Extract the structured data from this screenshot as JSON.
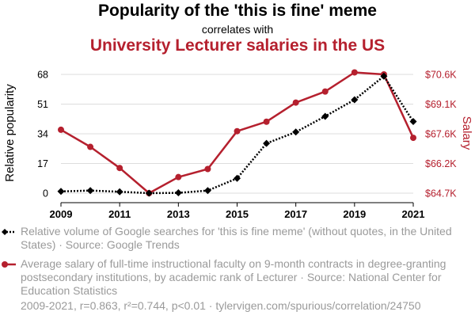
{
  "header": {
    "title": "Popularity of the 'this is fine' meme",
    "correlates": "correlates with",
    "title2": "University Lecturer salaries in the US"
  },
  "legend": {
    "series1": "Relative volume of Google searches for 'this is fine meme' (without quotes, in the United States) · Source: Google Trends",
    "series2": "Average salary of full-time instructional faculty on 9-month contracts in degree-granting postsecondary institutions, by academic rank of Lecturer · Source: National Center for Education Statistics"
  },
  "footer": "2009-2021, r=0.863, r²=0.744, p<0.01 · tylervigen.com/spurious/correlation/24750",
  "colors": {
    "series1": "#000000",
    "series2": "#b5202e"
  },
  "chart_data": {
    "type": "line",
    "x": [
      2009,
      2010,
      2011,
      2012,
      2013,
      2014,
      2015,
      2016,
      2017,
      2018,
      2019,
      2020,
      2021
    ],
    "x_ticks": [
      "2009",
      "2011",
      "2013",
      "2015",
      "2017",
      "2019",
      "2021"
    ],
    "ylabel_left": "Relative popularity",
    "ylabel_right": "Salary",
    "yticks_left": [
      "0",
      "17",
      "34",
      "51",
      "68"
    ],
    "yticks_right": [
      "$64.7K",
      "$66.2K",
      "$67.6K",
      "$69.1K",
      "$70.6K"
    ],
    "ylim_left": [
      0,
      68
    ],
    "ylim_right": [
      64700,
      70600
    ],
    "series": [
      {
        "name": "Relative volume of Google searches for 'this is fine meme'",
        "axis": "left",
        "style": "dotted",
        "values": [
          1,
          1.5,
          0.8,
          0,
          0.2,
          1.5,
          8.5,
          28.5,
          35,
          44,
          53.5,
          67,
          41
        ]
      },
      {
        "name": "Average salary of full-time instructional faculty, Lecturer",
        "axis": "right",
        "style": "solid",
        "values": [
          67850,
          67000,
          65950,
          64700,
          65500,
          65900,
          67780,
          68250,
          69200,
          69750,
          70700,
          70600,
          67450
        ]
      }
    ]
  }
}
